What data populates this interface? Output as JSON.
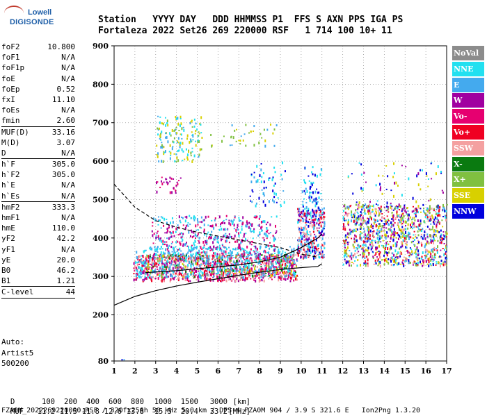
{
  "logo": {
    "line1": "Lowell",
    "line2": "DIGISONDE"
  },
  "header": {
    "labels": "Station   YYYY DAY   DDD HHMMSS P1  FFS S AXN PPS IGA PS",
    "values": "Fortaleza 2022 Set26 269 220000 RSF   1 714 100 10+ 11"
  },
  "params": [
    {
      "name": "foF2",
      "value": "10.800"
    },
    {
      "name": "foF1",
      "value": "N/A"
    },
    {
      "name": "foF1p",
      "value": "N/A"
    },
    {
      "name": "foE",
      "value": "N/A"
    },
    {
      "name": "foEp",
      "value": "0.52"
    },
    {
      "name": "fxI",
      "value": "11.10"
    },
    {
      "name": "foEs",
      "value": "N/A"
    },
    {
      "name": "fmin",
      "value": "2.60",
      "sep_after": true
    },
    {
      "name": "MUF(D)",
      "value": "33.16"
    },
    {
      "name": "M(D)",
      "value": "3.07"
    },
    {
      "name": "D",
      "value": "N/A",
      "sep_after": true
    },
    {
      "name": "h`F",
      "value": "305.0"
    },
    {
      "name": "h`F2",
      "value": "305.0"
    },
    {
      "name": "h`E",
      "value": "N/A"
    },
    {
      "name": "h`Es",
      "value": "N/A",
      "sep_after": true
    },
    {
      "name": "hmF2",
      "value": "333.3"
    },
    {
      "name": "hmF1",
      "value": "N/A"
    },
    {
      "name": "hmE",
      "value": "110.0"
    },
    {
      "name": "yF2",
      "value": "42.2"
    },
    {
      "name": "yF1",
      "value": "N/A"
    },
    {
      "name": "yE",
      "value": "20.0"
    },
    {
      "name": "B0",
      "value": "46.2"
    },
    {
      "name": "B1",
      "value": "1.21",
      "sep_after": true
    },
    {
      "name": "C-level",
      "value": "44",
      "sep_after": true
    }
  ],
  "auto": [
    "Auto:",
    "Artist5",
    "500200"
  ],
  "legend": [
    {
      "label": "NoVal",
      "color": "#8c8c8c"
    },
    {
      "label": "NNE",
      "color": "#22e0f0"
    },
    {
      "label": "E",
      "color": "#44aaee"
    },
    {
      "label": "W",
      "color": "#a000a0"
    },
    {
      "label": "Vo-",
      "color": "#e60070"
    },
    {
      "label": "Vo+",
      "color": "#f00022"
    },
    {
      "label": "SSW",
      "color": "#f4a0a0"
    },
    {
      "label": "X-",
      "color": "#0a7a10"
    },
    {
      "label": "X+",
      "color": "#80c040"
    },
    {
      "label": "SSE",
      "color": "#d8d000"
    },
    {
      "label": "NNW",
      "color": "#0000dd"
    }
  ],
  "bottom": {
    "d_label": "D",
    "d_values": [
      "100",
      "200",
      "400",
      "600",
      "800",
      "1000",
      "1500",
      "3000",
      "[km]"
    ],
    "muf_label": "MUF",
    "muf_values": [
      "11.2",
      "11.3",
      "11.8",
      "12.6",
      "13.8",
      "15.5",
      "20.4",
      "33.2",
      "[MHz]"
    ]
  },
  "footer": "FZA0M_2022269220000.RSF / 320fx256h 50 kHz 5.0 km / DPS-4 FZA0M 904 / 3.9 S 321.6 E   Ion2Png 1.3.20",
  "chart_data": {
    "type": "scatter",
    "xlim": [
      1,
      17
    ],
    "ylim": [
      80,
      900
    ],
    "x_ticks": [
      1,
      2,
      3,
      4,
      5,
      6,
      7,
      8,
      9,
      10,
      11,
      12,
      13,
      14,
      15,
      16,
      17
    ],
    "y_ticks": [
      80,
      200,
      300,
      400,
      500,
      600,
      700,
      800,
      900
    ],
    "curves": [
      {
        "style": "solid",
        "points": [
          [
            1,
            225
          ],
          [
            2,
            248
          ],
          [
            3,
            263
          ],
          [
            4,
            275
          ],
          [
            5,
            285
          ],
          [
            6,
            294
          ],
          [
            7,
            303
          ],
          [
            8,
            311
          ],
          [
            9,
            318
          ],
          [
            10,
            323
          ],
          [
            10.8,
            326
          ],
          [
            11,
            333
          ]
        ]
      },
      {
        "style": "solid",
        "points": [
          [
            2.5,
            310
          ],
          [
            4,
            315
          ],
          [
            5,
            320
          ],
          [
            6,
            325
          ],
          [
            7,
            330
          ],
          [
            8,
            338
          ],
          [
            9,
            350
          ],
          [
            10,
            375
          ],
          [
            10.8,
            400
          ],
          [
            11,
            410
          ]
        ]
      },
      {
        "style": "dashed",
        "points": [
          [
            1,
            540
          ],
          [
            2,
            480
          ],
          [
            3,
            445
          ],
          [
            4,
            428
          ],
          [
            5,
            415
          ],
          [
            6,
            405
          ],
          [
            7,
            395
          ],
          [
            8,
            385
          ],
          [
            9,
            375
          ],
          [
            10,
            358
          ],
          [
            10.8,
            350
          ]
        ]
      }
    ],
    "clusters": [
      {
        "x": [
          1.9,
          9.8
        ],
        "y": [
          290,
          360
        ],
        "colors": [
          "#f00022",
          "#e60070",
          "#a000a0",
          "#f4a0a0"
        ],
        "n": 900
      },
      {
        "x": [
          2.0,
          9.8
        ],
        "y": [
          300,
          380
        ],
        "colors": [
          "#44aaee",
          "#22e0f0"
        ],
        "n": 500
      },
      {
        "x": [
          2.5,
          9.8
        ],
        "y": [
          300,
          360
        ],
        "colors": [
          "#d8d000",
          "#80c040",
          "#0a7a10",
          "#8c8c8c"
        ],
        "n": 200
      },
      {
        "x": [
          2.8,
          8.8
        ],
        "y": [
          360,
          460
        ],
        "colors": [
          "#a000a0",
          "#e60070",
          "#44aaee",
          "#22e0f0"
        ],
        "n": 450
      },
      {
        "x": [
          9.8,
          11.1
        ],
        "y": [
          350,
          480
        ],
        "colors": [
          "#0000dd",
          "#a000a0",
          "#44aaee",
          "#f00022",
          "#22e0f0",
          "#f4a0a0"
        ],
        "n": 350
      },
      {
        "x": [
          12.0,
          17.0
        ],
        "y": [
          330,
          490
        ],
        "colors": [
          "#0000dd",
          "#a000a0",
          "#44aaee",
          "#f00022",
          "#22e0f0",
          "#f4a0a0",
          "#80c040",
          "#d8d000"
        ],
        "n": 1100
      },
      {
        "x": [
          3.0,
          5.2
        ],
        "y": [
          600,
          720
        ],
        "colors": [
          "#d8d000",
          "#22e0f0",
          "#44aaee",
          "#80c040"
        ],
        "n": 160
      },
      {
        "x": [
          5.5,
          8.8
        ],
        "y": [
          640,
          700
        ],
        "colors": [
          "#d8d000",
          "#80c040",
          "#44aaee"
        ],
        "n": 40
      },
      {
        "x": [
          7.5,
          9.2
        ],
        "y": [
          480,
          600
        ],
        "colors": [
          "#22e0f0",
          "#44aaee",
          "#0000dd"
        ],
        "n": 60
      },
      {
        "x": [
          3.0,
          4.2
        ],
        "y": [
          520,
          560
        ],
        "colors": [
          "#a000a0",
          "#e60070"
        ],
        "n": 30
      },
      {
        "x": [
          10.0,
          11.0
        ],
        "y": [
          480,
          590
        ],
        "colors": [
          "#22e0f0",
          "#44aaee",
          "#0000dd"
        ],
        "n": 60
      },
      {
        "x": [
          12.2,
          16.8
        ],
        "y": [
          480,
          600
        ],
        "colors": [
          "#a000a0",
          "#0000dd",
          "#22e0f0",
          "#d8d000"
        ],
        "n": 70
      }
    ]
  }
}
